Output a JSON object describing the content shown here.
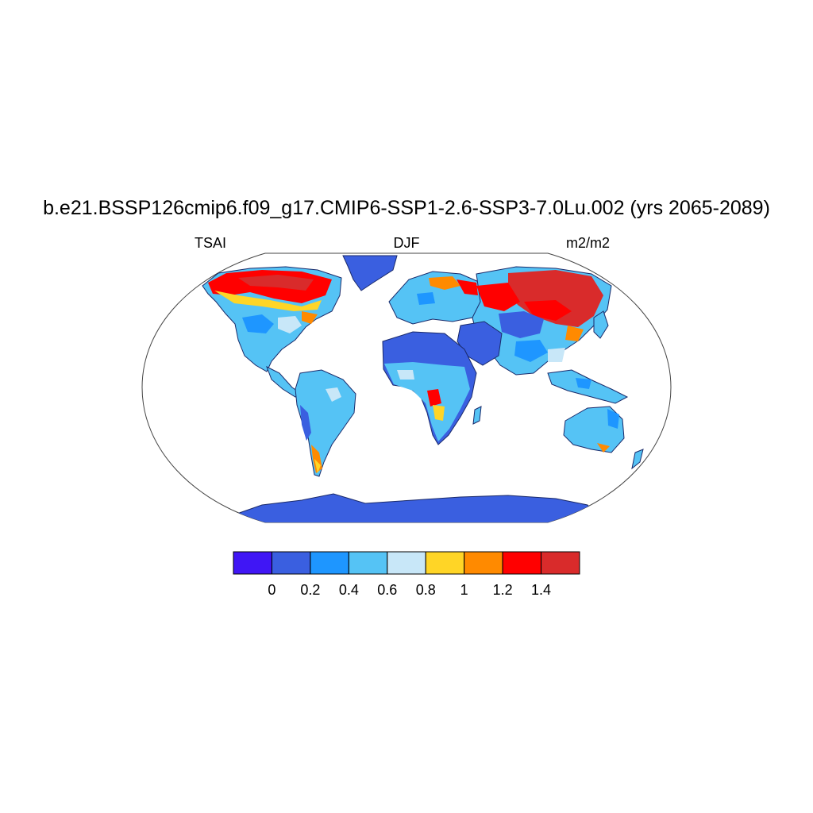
{
  "title": "b.e21.BSSP126cmip6.f09_g17.CMIP6-SSP1-2.6-SSP3-7.0Lu.002 (yrs 2065-2089)",
  "left_string": "TSAI",
  "center_string": "DJF",
  "right_string": "m2/m2",
  "colorbar": {
    "colors": [
      "#4016f5",
      "#3a5fe0",
      "#1e96ff",
      "#55c3f5",
      "#c8e7f8",
      "#ffd526",
      "#ff8a00",
      "#ff0000",
      "#d92b2b"
    ],
    "labels": [
      "0",
      "0.2",
      "0.4",
      "0.6",
      "0.8",
      "1",
      "1.2",
      "1.4"
    ]
  },
  "colors": {
    "land_base": "#55c3f5",
    "desert": "#3a5fe0",
    "ocean": "#ffffff",
    "coast": "#1a2a6a"
  }
}
